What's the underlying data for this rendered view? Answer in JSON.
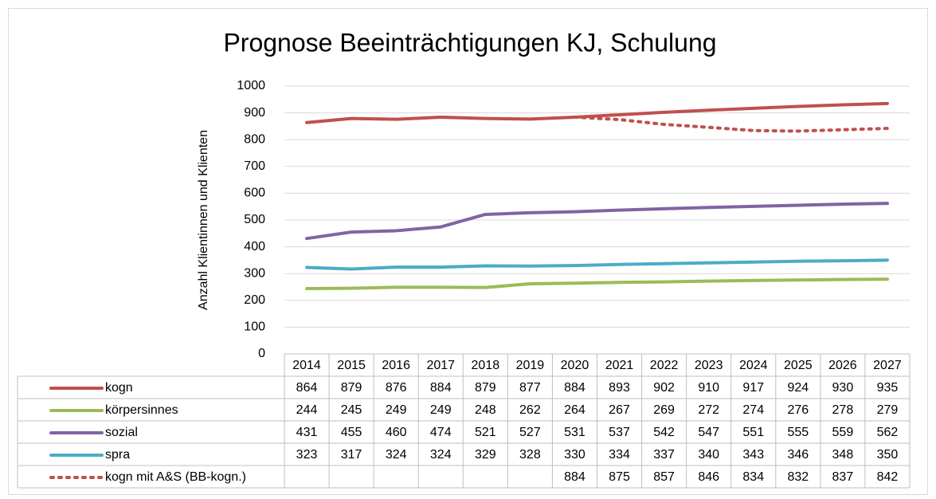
{
  "chart_data": {
    "type": "line",
    "title": "Prognose Beeinträchtigungen KJ, Schulung",
    "y_label": "Anzahl Klientinnen und Klienten",
    "categories": [
      "2014",
      "2015",
      "2016",
      "2017",
      "2018",
      "2019",
      "2020",
      "2021",
      "2022",
      "2023",
      "2024",
      "2025",
      "2026",
      "2027"
    ],
    "ylim": [
      0,
      1000
    ],
    "yticks": [
      0,
      100,
      200,
      300,
      400,
      500,
      600,
      700,
      800,
      900,
      1000
    ],
    "grid": true,
    "data_table": true,
    "series": [
      {
        "name": "kogn",
        "color": "#c0504d",
        "line_style": "solid",
        "values": [
          864,
          879,
          876,
          884,
          879,
          877,
          884,
          893,
          902,
          910,
          917,
          924,
          930,
          935
        ]
      },
      {
        "name": "körpersinnes",
        "color": "#9bbb59",
        "line_style": "solid",
        "values": [
          244,
          245,
          249,
          249,
          248,
          262,
          264,
          267,
          269,
          272,
          274,
          276,
          278,
          279
        ]
      },
      {
        "name": "sozial",
        "color": "#8064a2",
        "line_style": "solid",
        "values": [
          431,
          455,
          460,
          474,
          521,
          527,
          531,
          537,
          542,
          547,
          551,
          555,
          559,
          562
        ]
      },
      {
        "name": "spra",
        "color": "#4bacc6",
        "line_style": "solid",
        "values": [
          323,
          317,
          324,
          324,
          329,
          328,
          330,
          334,
          337,
          340,
          343,
          346,
          348,
          350
        ]
      },
      {
        "name": "kogn mit A&S (BB-kogn.)",
        "color": "#c0504d",
        "line_style": "dotted",
        "values": [
          null,
          null,
          null,
          null,
          null,
          null,
          884,
          875,
          857,
          846,
          834,
          832,
          837,
          842
        ]
      }
    ]
  }
}
